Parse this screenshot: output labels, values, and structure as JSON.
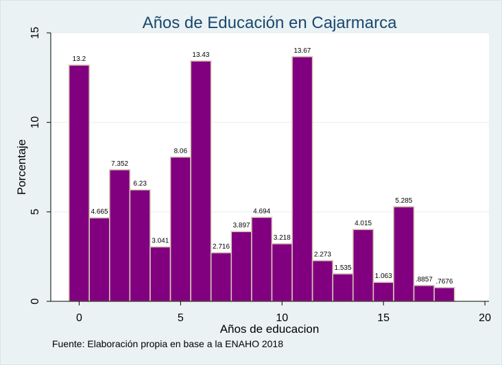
{
  "chart_data": {
    "type": "bar",
    "title": "Años de Educación en Cajarmarca",
    "xlabel": "Años de educacion",
    "ylabel": "Porcentaje",
    "x": [
      0,
      1,
      2,
      3,
      4,
      5,
      6,
      7,
      8,
      9,
      10,
      11,
      12,
      13,
      14,
      15,
      16,
      17,
      18
    ],
    "values": [
      13.2,
      4.665,
      7.352,
      6.23,
      3.041,
      8.06,
      13.43,
      2.716,
      3.897,
      4.694,
      3.218,
      13.67,
      2.273,
      1.535,
      4.015,
      1.063,
      5.285,
      0.8857,
      0.7676
    ],
    "value_labels": [
      "13.2",
      "4.665",
      "7.352",
      "6.23",
      "3.041",
      "8.06",
      "13.43",
      "2.716",
      "3.897",
      "4.694",
      "3.218",
      "13.67",
      "2.273",
      "1.535",
      "4.015",
      "1.063",
      "5.285",
      ".8857",
      ".7676"
    ],
    "xlim": [
      -1.4,
      20.2
    ],
    "ylim": [
      0,
      15
    ],
    "xticks": [
      0,
      5,
      10,
      15,
      20
    ],
    "yticks": [
      0,
      5,
      10,
      15
    ],
    "grid": "horizontal",
    "bar_color": "#800080",
    "bar_edge_color": "#d9c8b4",
    "title_color": "#1a476f",
    "plot_background": "#ffffff",
    "frame_background": "#eaf2f3"
  },
  "note": "Fuente: Elaboración propia en base a la ENAHO 2018"
}
